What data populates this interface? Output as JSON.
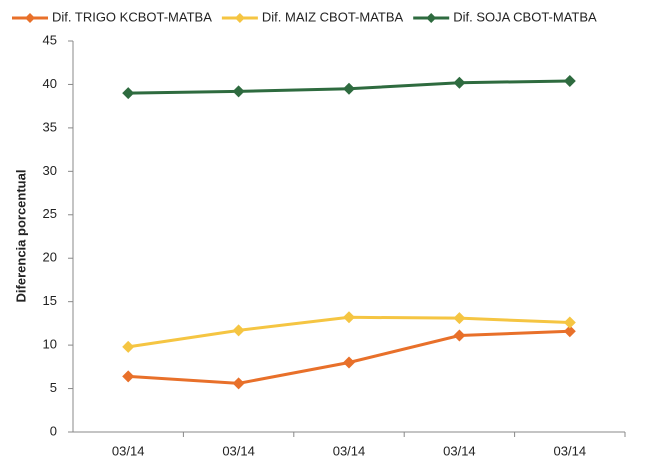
{
  "chart_data": {
    "type": "line",
    "y_label": "Diferencia porcentual",
    "categories": [
      "03/14",
      "03/14",
      "03/14",
      "03/14",
      "03/14"
    ],
    "series": [
      {
        "name": "Dif. TRIGO KCBOT-MATBA",
        "color": "#e8702a",
        "values": [
          6.4,
          5.6,
          8.0,
          11.1,
          11.6
        ]
      },
      {
        "name": "Dif. MAIZ CBOT-MATBA",
        "color": "#f5c542",
        "values": [
          9.8,
          11.7,
          13.2,
          13.1,
          12.6
        ]
      },
      {
        "name": "Dif. SOJA CBOT-MATBA",
        "color": "#2e6b3f",
        "values": [
          39.0,
          39.2,
          39.5,
          40.2,
          40.4
        ]
      }
    ],
    "ylim": [
      0,
      45
    ],
    "yticks": [
      0,
      5,
      10,
      15,
      20,
      25,
      30,
      35,
      40,
      45
    ],
    "grid": false,
    "legend": "top"
  }
}
